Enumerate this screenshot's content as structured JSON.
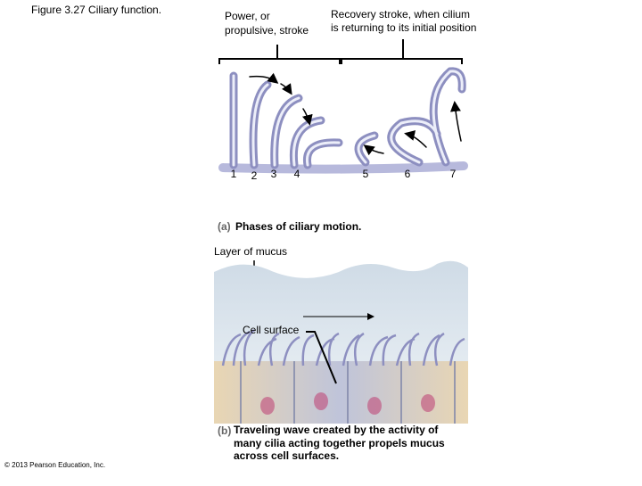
{
  "figure_title": "Figure 3.27 Ciliary function.",
  "panel_a": {
    "power_stroke_label": [
      "Power, or",
      "propulsive, stroke"
    ],
    "recovery_stroke_label": [
      "Recovery stroke, when cilium",
      "is returning to its initial position"
    ],
    "phase_numbers": [
      "1",
      "2",
      "3",
      "4",
      "5",
      "6",
      "7"
    ],
    "caption_letter": "(a)",
    "caption": "Phases of ciliary motion."
  },
  "panel_b": {
    "mucus_label": "Layer of mucus",
    "cell_surface_label": "Cell surface",
    "caption_letter": "(b)",
    "caption": [
      "Traveling wave created by the activity of",
      "many cilia acting together propels mucus",
      "across cell surfaces."
    ]
  },
  "copyright": "© 2013 Pearson Education, Inc."
}
